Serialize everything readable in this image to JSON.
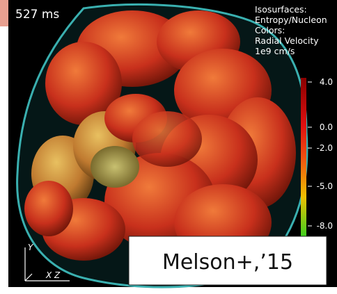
{
  "timestamp": "527 ms",
  "legend": {
    "lines": [
      "Isosurfaces:",
      "Entropy/Nucleon",
      "Colors:",
      "Radial Velocity",
      "1e9 cm/s"
    ]
  },
  "colorbar": {
    "ticks": [
      "4.0",
      "0.0",
      "-2.0",
      "-5.0",
      "-8.0"
    ]
  },
  "axes": {
    "y": "Y",
    "xz": "X Z"
  },
  "credit": "Melson+,’15"
}
